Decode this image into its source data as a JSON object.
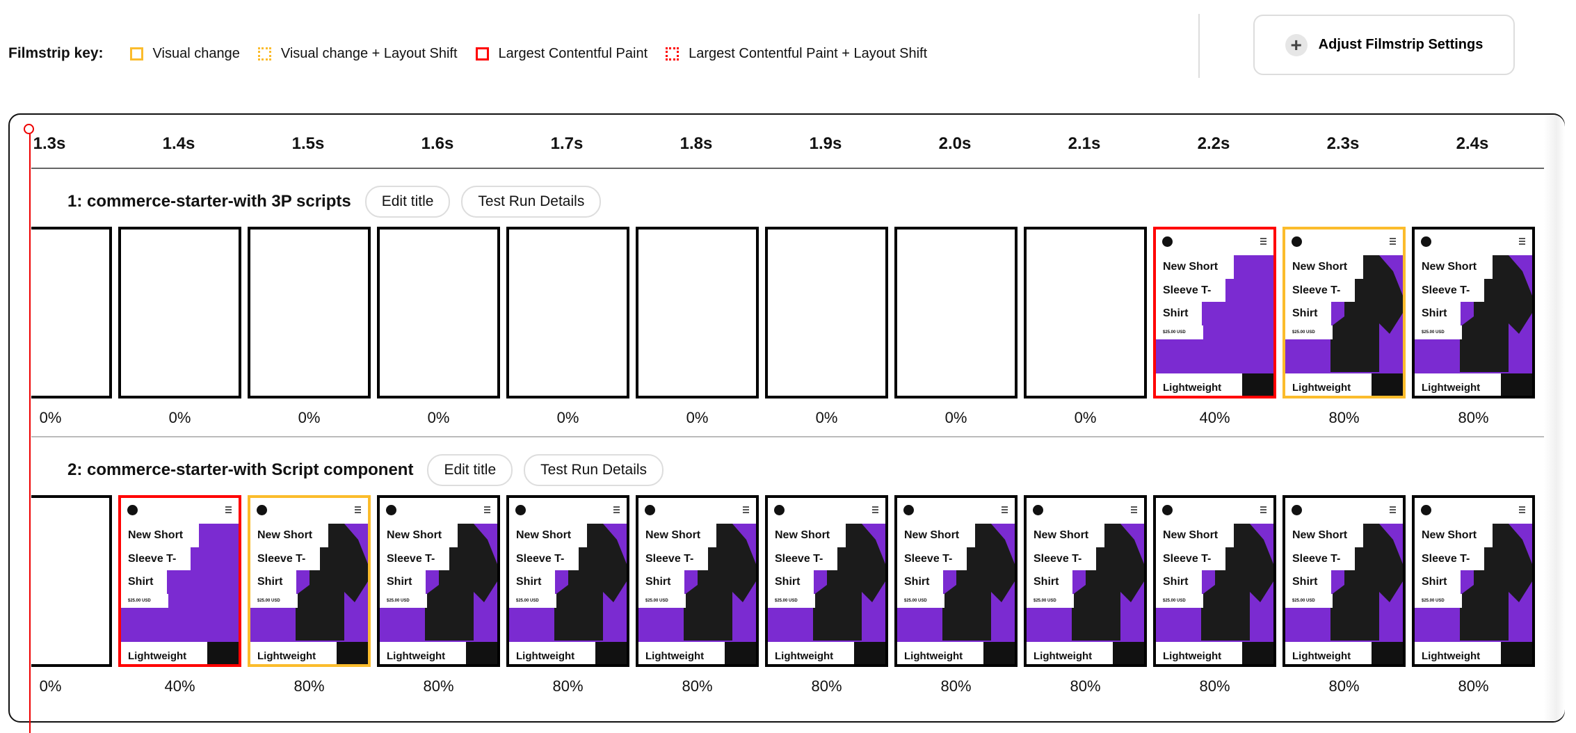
{
  "key": {
    "title": "Filmstrip key:",
    "items": [
      {
        "label": "Visual change",
        "color": "#fbbc2c",
        "style": "solid"
      },
      {
        "label": "Visual change + Layout Shift",
        "color": "#fbbc2c",
        "style": "dotted"
      },
      {
        "label": "Largest Contentful Paint",
        "color": "#ff0000",
        "style": "solid"
      },
      {
        "label": "Largest Contentful Paint + Layout Shift",
        "color": "#ff0000",
        "style": "dotted"
      }
    ]
  },
  "adjust_button": {
    "label": "Adjust Filmstrip Settings",
    "icon": "plus-icon"
  },
  "timeline": [
    "1.3s",
    "1.4s",
    "1.5s",
    "1.6s",
    "1.7s",
    "1.8s",
    "1.9s",
    "2.0s",
    "2.1s",
    "2.2s",
    "2.3s",
    "2.4s"
  ],
  "colors": {
    "lcp": "#ff0000",
    "visual_change": "#fbbc2c",
    "default": "#000000",
    "thumb_purple": "#7b2bd1"
  },
  "thumbnail_text": {
    "line1": "New Short",
    "line2": "Sleeve T-",
    "line3": "Shirt",
    "price": "$25.00 USD",
    "footer": "Lightweight"
  },
  "rows": [
    {
      "title": "1: commerce-starter-with 3P scripts",
      "edit_label": "Edit title",
      "details_label": "Test Run Details",
      "frames": [
        {
          "pct": "0%",
          "state": "blank",
          "marker": "default"
        },
        {
          "pct": "0%",
          "state": "blank",
          "marker": "default"
        },
        {
          "pct": "0%",
          "state": "blank",
          "marker": "default"
        },
        {
          "pct": "0%",
          "state": "blank",
          "marker": "default"
        },
        {
          "pct": "0%",
          "state": "blank",
          "marker": "default"
        },
        {
          "pct": "0%",
          "state": "blank",
          "marker": "default"
        },
        {
          "pct": "0%",
          "state": "blank",
          "marker": "default"
        },
        {
          "pct": "0%",
          "state": "blank",
          "marker": "default"
        },
        {
          "pct": "0%",
          "state": "blank",
          "marker": "default"
        },
        {
          "pct": "40%",
          "state": "partial",
          "marker": "lcp"
        },
        {
          "pct": "80%",
          "state": "full",
          "marker": "visual_change"
        },
        {
          "pct": "80%",
          "state": "full",
          "marker": "default"
        }
      ]
    },
    {
      "title": "2: commerce-starter-with Script component",
      "edit_label": "Edit title",
      "details_label": "Test Run Details",
      "frames": [
        {
          "pct": "0%",
          "state": "blank",
          "marker": "default"
        },
        {
          "pct": "40%",
          "state": "partial",
          "marker": "lcp"
        },
        {
          "pct": "80%",
          "state": "full",
          "marker": "visual_change"
        },
        {
          "pct": "80%",
          "state": "full",
          "marker": "default"
        },
        {
          "pct": "80%",
          "state": "full",
          "marker": "default"
        },
        {
          "pct": "80%",
          "state": "full",
          "marker": "default"
        },
        {
          "pct": "80%",
          "state": "full",
          "marker": "default"
        },
        {
          "pct": "80%",
          "state": "full",
          "marker": "default"
        },
        {
          "pct": "80%",
          "state": "full",
          "marker": "default"
        },
        {
          "pct": "80%",
          "state": "full",
          "marker": "default"
        },
        {
          "pct": "80%",
          "state": "full",
          "marker": "default"
        },
        {
          "pct": "80%",
          "state": "full",
          "marker": "default"
        }
      ]
    }
  ]
}
